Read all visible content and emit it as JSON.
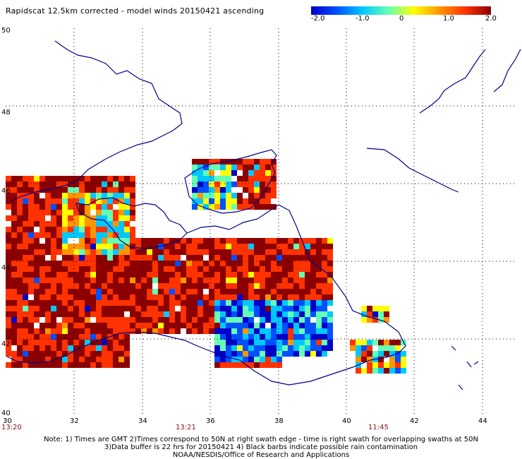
{
  "title": "Rapidscat 12.5km corrected - model winds 20150421 ascending",
  "colorbar": {
    "min": -2.0,
    "max": 2.0,
    "ticks": [
      "-2.0",
      "-1.0",
      "0",
      "1.0",
      "2.0"
    ],
    "colors": [
      "#0000c8",
      "#0050ff",
      "#00c8ff",
      "#64ffb4",
      "#ffff00",
      "#ff9600",
      "#ff3200",
      "#8b0000"
    ]
  },
  "map": {
    "lat_labels": [
      "50",
      "48",
      "46",
      "44",
      "42",
      "40"
    ],
    "lon_labels": [
      "30",
      "32",
      "34",
      "36",
      "38",
      "40",
      "42",
      "44"
    ],
    "lat_range": [
      40,
      50
    ],
    "lon_range": [
      30,
      45
    ],
    "grid": "dotted",
    "times": [
      "13:20",
      "13:21",
      "11:45"
    ]
  },
  "notes": [
    "Note: 1) Times are GMT 2)Times correspond to 50N at right swath edge - time is right swath for overlapping swaths at 50N",
    "3)Data buffer is 22 hrs for 20150421 4) Black barbs indicate possible rain contamination",
    "NOAA/NESDIS/Office of Research and Applications"
  ]
}
